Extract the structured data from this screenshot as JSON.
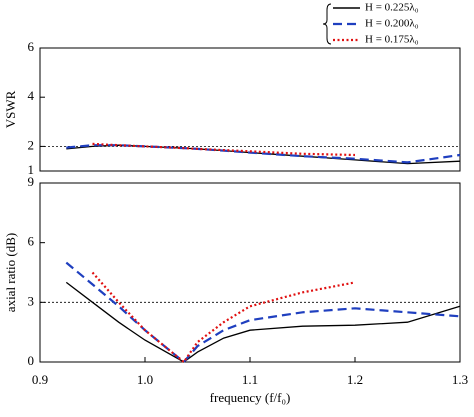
{
  "chart_data": [
    {
      "type": "line",
      "y_label": "VSWR",
      "x": [
        0.925,
        0.95,
        0.975,
        1.0,
        1.037,
        1.05,
        1.075,
        1.1,
        1.15,
        1.2,
        1.25,
        1.3
      ],
      "series": [
        {
          "name": "H = 0.225λ₀",
          "color": "#000000",
          "dash": "solid",
          "values": [
            1.9,
            2.0,
            2.05,
            2.0,
            1.93,
            1.9,
            1.83,
            1.75,
            1.6,
            1.45,
            1.3,
            1.4
          ]
        },
        {
          "name": "H = 0.200λ₀",
          "color": "#1f3fbf",
          "dash": "dashed",
          "values": [
            1.95,
            2.05,
            2.05,
            2.0,
            1.93,
            1.9,
            1.83,
            1.75,
            1.6,
            1.5,
            1.35,
            1.65
          ]
        },
        {
          "name": "H = 0.175λ₀",
          "color": "#e01010",
          "dash": "dotted",
          "values": [
            null,
            2.1,
            2.05,
            2.0,
            1.93,
            1.9,
            1.85,
            1.8,
            1.7,
            1.65,
            null,
            null
          ]
        }
      ],
      "xlim": [
        0.9,
        1.3
      ],
      "ylim": [
        1,
        6
      ],
      "yticks": [
        1,
        2,
        4,
        6
      ],
      "hline": 2
    },
    {
      "type": "line",
      "x_label": "frequency (f/f₀)",
      "y_label": "axial ratio (dB)",
      "x": [
        0.925,
        0.95,
        0.975,
        1.0,
        1.037,
        1.05,
        1.075,
        1.1,
        1.15,
        1.2,
        1.25,
        1.3
      ],
      "series": [
        {
          "color": "#000000",
          "dash": "solid",
          "values": [
            4.0,
            3.0,
            2.0,
            1.1,
            0.0,
            0.5,
            1.2,
            1.6,
            1.8,
            1.85,
            2.0,
            2.8
          ]
        },
        {
          "color": "#1f3fbf",
          "dash": "dashed",
          "values": [
            5.0,
            3.9,
            2.8,
            1.6,
            0.0,
            0.8,
            1.6,
            2.1,
            2.5,
            2.7,
            2.5,
            2.3
          ]
        },
        {
          "color": "#e01010",
          "dash": "dotted",
          "values": [
            null,
            4.5,
            3.0,
            1.6,
            0.0,
            1.0,
            2.0,
            2.8,
            3.5,
            4.0,
            null,
            null
          ]
        }
      ],
      "xlim": [
        0.9,
        1.3
      ],
      "xticks": [
        0.9,
        {
          "value": 1.0,
          "label": "1.0"
        },
        1.1,
        1.2,
        1.3
      ],
      "ylim": [
        0,
        9
      ],
      "yticks": [
        0,
        3,
        6,
        9
      ],
      "hline": 3
    }
  ]
}
